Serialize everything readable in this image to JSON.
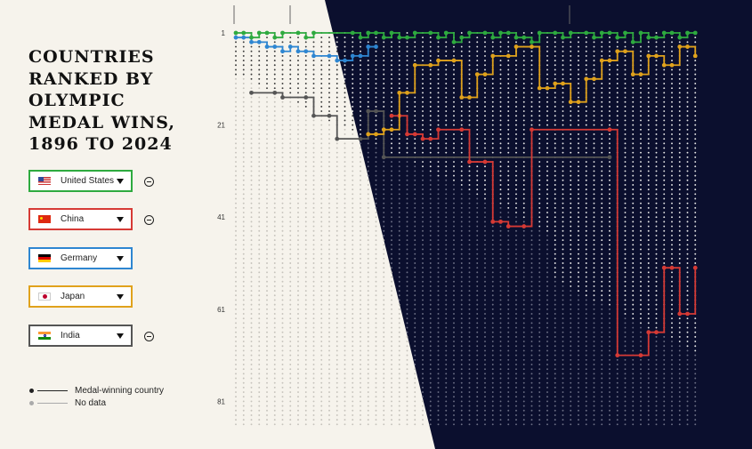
{
  "title": "Countries ranked by Olympic medal wins, 1896 to 2024",
  "selectors": [
    {
      "label": "United States",
      "color": "#2eaa3f",
      "removable": true,
      "flag": "us-flag-icon"
    },
    {
      "label": "China",
      "color": "#d63a35",
      "removable": true,
      "flag": "cn-flag-icon"
    },
    {
      "label": "Germany",
      "color": "#2e86d1",
      "removable": false,
      "flag": "de-flag-icon"
    },
    {
      "label": "Japan",
      "color": "#e0a21c",
      "removable": false,
      "flag": "jp-flag-icon"
    },
    {
      "label": "India",
      "color": "#555555",
      "removable": true,
      "flag": "in-flag-icon"
    }
  ],
  "legend": {
    "medal": "Medal-winning country",
    "nodata": "No data"
  },
  "chart_data": {
    "type": "line",
    "y_axis": {
      "ticks": [
        1,
        21,
        41,
        61,
        81
      ],
      "reversed": true,
      "range": [
        1,
        86
      ]
    },
    "x_axis": {
      "ticks": [],
      "columns": 60
    },
    "series": [
      {
        "name": "United States",
        "color": "#2eaa3f",
        "note": "rank per Games, 1 = most medals",
        "values": [
          1,
          1,
          2,
          1,
          1,
          2,
          1,
          1,
          1,
          2,
          1,
          1,
          1,
          1,
          1,
          1,
          2,
          1,
          1,
          2,
          1,
          2,
          2,
          1,
          1,
          1,
          2,
          1,
          3,
          2,
          1,
          1,
          1,
          2,
          1,
          1,
          2,
          2,
          3,
          1,
          1,
          1,
          2,
          1,
          1,
          1,
          2,
          1,
          1,
          2,
          1,
          3,
          1,
          2,
          2,
          1,
          1,
          2,
          1,
          1
        ]
      },
      {
        "name": "China",
        "color": "#d63a35",
        "values": [
          null,
          null,
          null,
          null,
          null,
          null,
          null,
          null,
          null,
          null,
          null,
          null,
          null,
          null,
          null,
          null,
          null,
          null,
          null,
          null,
          19,
          19,
          23,
          23,
          24,
          24,
          22,
          22,
          22,
          22,
          29,
          29,
          29,
          42,
          42,
          43,
          43,
          43,
          22,
          22,
          22,
          22,
          22,
          22,
          22,
          22,
          22,
          22,
          22,
          71,
          71,
          71,
          71,
          66,
          66,
          52,
          52,
          62,
          62,
          52
        ]
      },
      {
        "name": "Germany",
        "color": "#2e86d1",
        "values": [
          2,
          2,
          3,
          3,
          4,
          4,
          5,
          4,
          5,
          5,
          6,
          6,
          6,
          7,
          7,
          6,
          6,
          4,
          4
        ]
      },
      {
        "name": "Japan",
        "color": "#e0a21c",
        "values": [
          null,
          null,
          null,
          null,
          null,
          null,
          null,
          null,
          null,
          null,
          null,
          null,
          null,
          null,
          null,
          null,
          null,
          23,
          23,
          22,
          22,
          14,
          14,
          8,
          8,
          8,
          7,
          7,
          7,
          15,
          15,
          10,
          10,
          6,
          6,
          6,
          4,
          4,
          4,
          13,
          13,
          12,
          12,
          16,
          16,
          11,
          11,
          7,
          7,
          5,
          5,
          10,
          10,
          6,
          6,
          8,
          8,
          4,
          4,
          6
        ]
      },
      {
        "name": "India",
        "color": "#555555",
        "values": [
          null,
          null,
          14,
          14,
          14,
          14,
          15,
          15,
          15,
          15,
          19,
          19,
          19,
          24,
          24,
          24,
          24,
          18,
          18,
          28,
          28,
          28,
          28,
          28,
          28,
          28,
          28,
          28,
          28,
          28,
          28,
          28,
          28,
          28,
          28,
          28,
          28,
          28,
          28,
          28,
          28,
          28,
          28,
          28,
          28,
          28,
          28,
          28,
          28
        ]
      }
    ]
  }
}
